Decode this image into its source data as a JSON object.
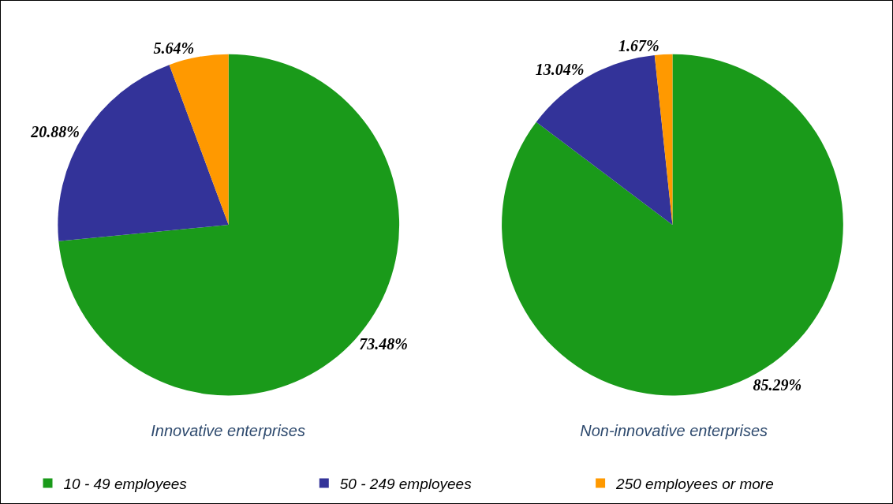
{
  "chart_data": [
    {
      "type": "pie",
      "title": "Innovative enterprises",
      "categories": [
        "10 - 49 employees",
        "50 - 249 employees",
        "250 employees or more"
      ],
      "values": [
        73.48,
        20.88,
        5.64
      ],
      "colors": [
        "#1a9a1a",
        "#333399",
        "#ff9900"
      ],
      "value_labels": [
        "73.48%",
        "20.88%",
        "5.64%"
      ],
      "legend": "bottom"
    },
    {
      "type": "pie",
      "title": "Non-innovative enterprises",
      "categories": [
        null,
        null,
        null
      ],
      "values": [
        85.29,
        13.04,
        1.67
      ],
      "colors": [
        "#1a9a1a",
        "#333399",
        "#ff9900"
      ],
      "value_labels": [
        "85.29%",
        "13.04%",
        "1.67%"
      ]
    }
  ]
}
